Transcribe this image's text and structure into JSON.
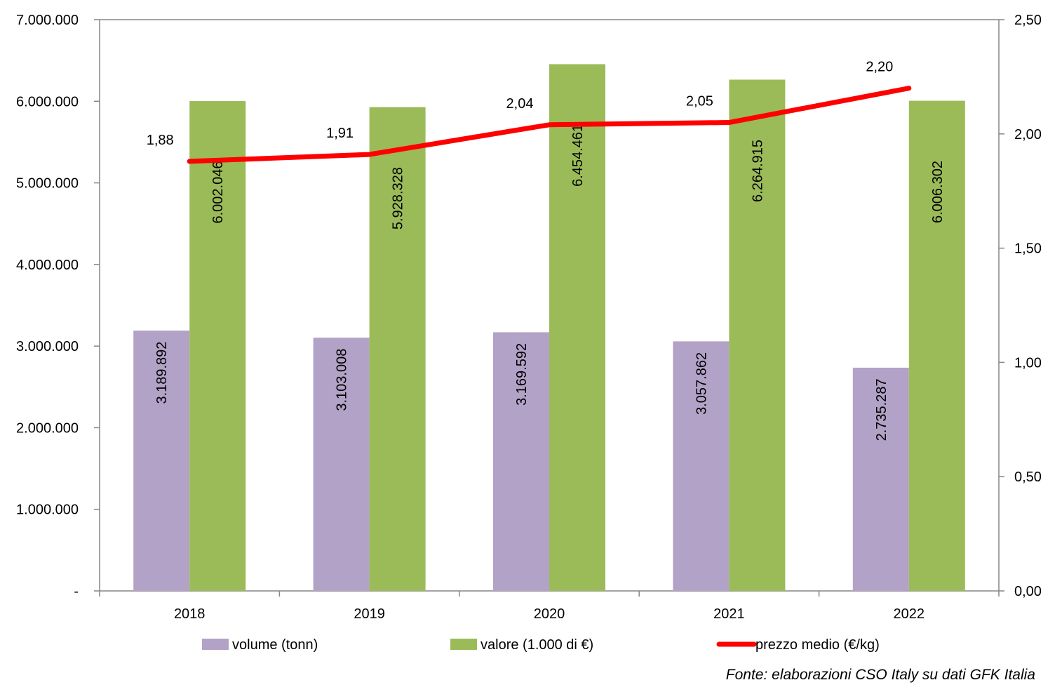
{
  "chart_data": {
    "type": "bar",
    "categories": [
      "2018",
      "2019",
      "2020",
      "2021",
      "2022"
    ],
    "series": [
      {
        "name": "volume (tonn)",
        "type": "bar",
        "axis": "left",
        "color": "#b3a2c7",
        "values": [
          3189892,
          3103008,
          3169592,
          3057862,
          2735287
        ],
        "labels": [
          "3.189.892",
          "3.103.008",
          "3.169.592",
          "3.057.862",
          "2.735.287"
        ]
      },
      {
        "name": "valore (1.000 di €)",
        "type": "bar",
        "axis": "left",
        "color": "#9bbb59",
        "values": [
          6002046,
          5928328,
          6454461,
          6264915,
          6006302
        ],
        "labels": [
          "6.002.046",
          "5.928.328",
          "6.454.461",
          "6.264.915",
          "6.006.302"
        ]
      },
      {
        "name": "prezzo medio (€/kg)",
        "type": "line",
        "axis": "right",
        "color": "#ff0000",
        "values": [
          1.88,
          1.91,
          2.04,
          2.05,
          2.2
        ],
        "labels": [
          "1,88",
          "1,91",
          "2,04",
          "2,05",
          "2,20"
        ]
      }
    ],
    "y_left": {
      "min": 0,
      "max": 7000000,
      "ticks": [
        0,
        1000000,
        2000000,
        3000000,
        4000000,
        5000000,
        6000000,
        7000000
      ],
      "tick_labels": [
        "-",
        "1.000.000",
        "2.000.000",
        "3.000.000",
        "4.000.000",
        "5.000.000",
        "6.000.000",
        "7.000.000"
      ]
    },
    "y_right": {
      "min": 0,
      "max": 2.5,
      "ticks": [
        0,
        0.5,
        1.0,
        1.5,
        2.0,
        2.5
      ],
      "tick_labels": [
        "0,00",
        "0,50",
        "1,00",
        "1,50",
        "2,00",
        "2,50"
      ]
    },
    "grid": false,
    "legend_position": "bottom"
  },
  "source_note": "Fonte: elaborazioni CSO Italy su dati GFK Italia"
}
